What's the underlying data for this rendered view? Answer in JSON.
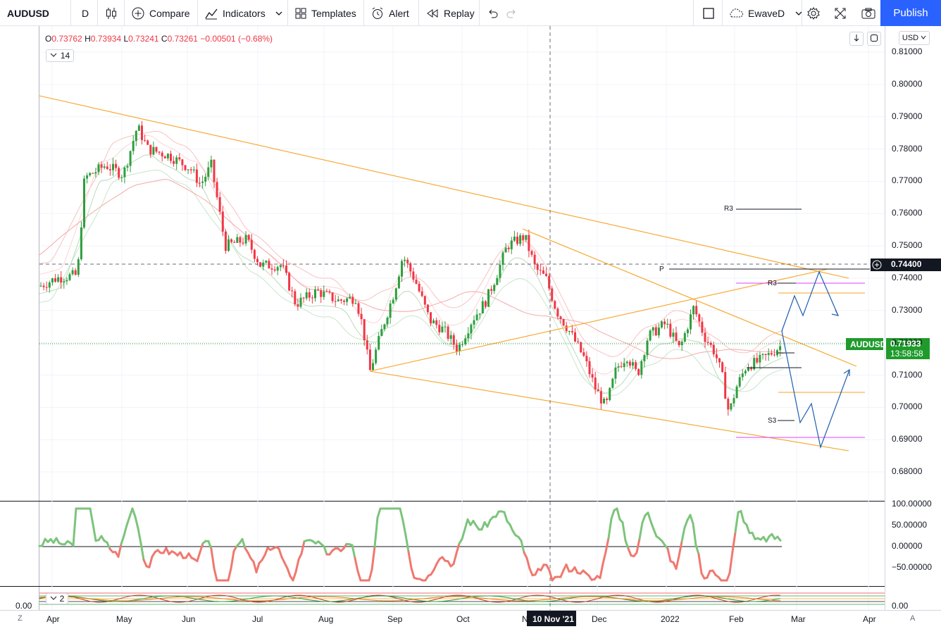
{
  "toolbar": {
    "symbol": "AUDUSD",
    "interval": "D",
    "compare": "Compare",
    "indicators": "Indicators",
    "templates": "Templates",
    "alert": "Alert",
    "replay": "Replay",
    "layout_name": "EwaveD",
    "publish": "Publish"
  },
  "legend": {
    "open_label": "O",
    "open": "0.73762",
    "high_label": "H",
    "high": "0.73934",
    "low_label": "L",
    "low": "0.73241",
    "close_label": "C",
    "close": "0.73261",
    "change": "−0.00501 (−0.68%)",
    "indicator_param": "14",
    "lower_param": "2"
  },
  "price_axis": {
    "currency": "USD",
    "ticks": [
      "0.81000",
      "0.80000",
      "0.79000",
      "0.78000",
      "0.77000",
      "0.76000",
      "0.75000",
      "0.74000",
      "0.73000",
      "0.72000",
      "0.71000",
      "0.70000",
      "0.69000",
      "0.68000"
    ],
    "crosshair_price": "0.74400",
    "symbol_tag": "AUDUSD",
    "last_price": "0.71933",
    "countdown": "13:58:58"
  },
  "osc_axis": {
    "ticks": [
      "100.00000",
      "50.00000",
      "0.00000",
      "−50.00000"
    ]
  },
  "lower_axis": {
    "tick": "0.00",
    "left_value": "0.00"
  },
  "time_axis": {
    "labels": [
      "Apr",
      "May",
      "Jun",
      "Jul",
      "Aug",
      "Sep",
      "Oct",
      "N",
      "Dec",
      "2022",
      "Feb",
      "Mar",
      "Apr"
    ],
    "crosshair_date": "10 Nov '21",
    "left_button": "Z",
    "right_button": "A"
  },
  "pivots": {
    "r3_top": "R3",
    "p": "P",
    "r3_mid": "R3",
    "s3": "S3"
  },
  "colors": {
    "up": "#26a69a",
    "up_candle": "#2e9e3e",
    "down": "#f23645",
    "trend": "#f7a325",
    "accent": "#2962ff",
    "last_price_bg": "#1f9b2c",
    "pivot_magenta": "#e040fb"
  }
}
